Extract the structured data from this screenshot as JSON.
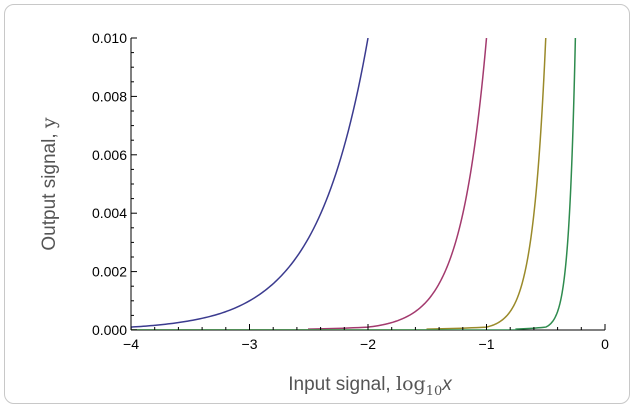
{
  "chart_data": {
    "type": "line",
    "title": "",
    "xlabel": {
      "prefix": "Input signal, ",
      "fn": "log",
      "sub": "10",
      "var": "x"
    },
    "ylabel": {
      "prefix": "Output signal, ",
      "var": "y"
    },
    "xlim": [
      -4,
      0
    ],
    "ylim": [
      0,
      0.01
    ],
    "x_ticks": [
      -4,
      -3,
      -2,
      -1,
      0
    ],
    "x_tick_labels": [
      "−4",
      "−3",
      "−2",
      "−1",
      "0"
    ],
    "y_ticks": [
      0,
      0.002,
      0.004,
      0.006,
      0.008,
      0.01
    ],
    "y_tick_labels": [
      "0.000",
      "0.002",
      "0.004",
      "0.006",
      "0.008",
      "0.010"
    ],
    "grid": false,
    "legend": "none",
    "series": [
      {
        "color": "#3b3b8f",
        "x": [
          -4.0,
          -3.75,
          -3.5,
          -3.25,
          -3.0,
          -2.75,
          -2.5,
          -2.25,
          -2.0
        ],
        "y": [
          0.0001,
          0.00018,
          0.00032,
          0.00056,
          0.001,
          0.00178,
          0.00316,
          0.00562,
          0.01
        ]
      },
      {
        "color": "#a33a6e",
        "x": [
          -2.5,
          -2.0,
          -1.75,
          -1.5,
          -1.375,
          -1.25,
          -1.125,
          -1.0
        ],
        "y": [
          3.16e-05,
          0.0001,
          0.00032,
          0.001,
          0.00178,
          0.00316,
          0.00562,
          0.01
        ]
      },
      {
        "color": "#9a8a2a",
        "x": [
          -1.5,
          -1.0,
          -0.875,
          -0.75,
          -0.6875,
          -0.625,
          -0.5625,
          -0.5
        ],
        "y": [
          3.16e-05,
          0.0001,
          0.00032,
          0.001,
          0.00178,
          0.00316,
          0.00562,
          0.01
        ]
      },
      {
        "color": "#2e8b4e",
        "x": [
          -0.75,
          -0.5,
          -0.4375,
          -0.375,
          -0.34375,
          -0.3125,
          -0.28125,
          -0.25
        ],
        "y": [
          3.16e-05,
          0.0001,
          0.00032,
          0.001,
          0.00178,
          0.00316,
          0.00562,
          0.01
        ]
      }
    ]
  }
}
